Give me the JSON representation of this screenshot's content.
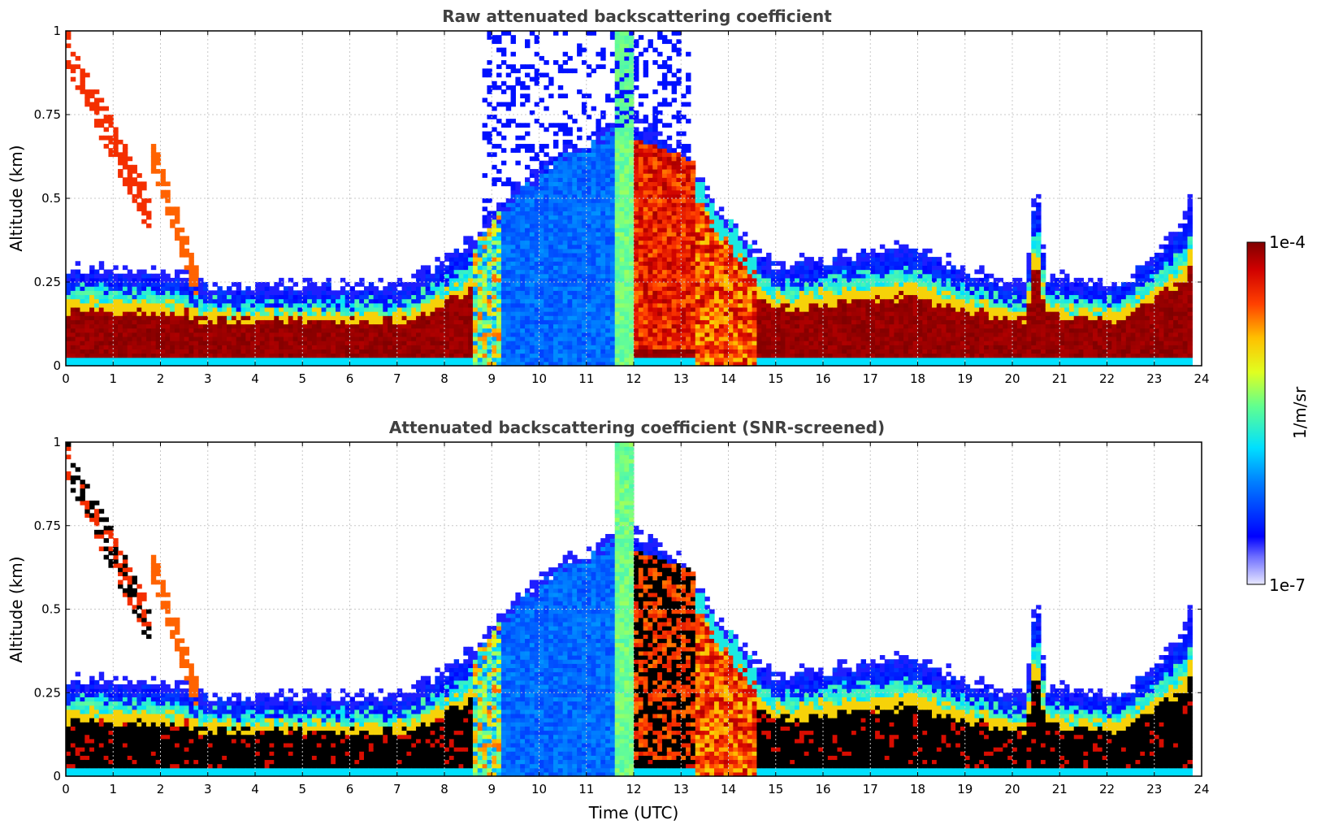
{
  "chart_data": [
    {
      "type": "heatmap",
      "title": "Raw attenuated backscattering coefficient",
      "xlabel": "",
      "ylabel": "Altitude (km)",
      "xlim": [
        0,
        24
      ],
      "ylim": [
        0,
        1
      ],
      "xticks": [
        0,
        1,
        2,
        3,
        4,
        5,
        6,
        7,
        8,
        9,
        10,
        11,
        12,
        13,
        14,
        15,
        16,
        17,
        18,
        19,
        20,
        21,
        22,
        23,
        24
      ],
      "ytick_labels": [
        "0",
        "0.25",
        "0.5",
        "0.75",
        "1"
      ],
      "ytick_values": [
        0,
        0.25,
        0.5,
        0.75,
        1
      ],
      "grid": true,
      "screened": false
    },
    {
      "type": "heatmap",
      "title": "Attenuated backscattering coefficient (SNR-screened)",
      "xlabel": "Time (UTC)",
      "ylabel": "Altitude (km)",
      "xlim": [
        0,
        24
      ],
      "ylim": [
        0,
        1
      ],
      "xticks": [
        0,
        1,
        2,
        3,
        4,
        5,
        6,
        7,
        8,
        9,
        10,
        11,
        12,
        13,
        14,
        15,
        16,
        17,
        18,
        19,
        20,
        21,
        22,
        23,
        24
      ],
      "ytick_labels": [
        "0",
        "0.25",
        "0.5",
        "0.75",
        "1"
      ],
      "ytick_values": [
        0,
        0.25,
        0.5,
        0.75,
        1
      ],
      "grid": true,
      "screened": true
    }
  ],
  "colorbar": {
    "label": "1/m/sr",
    "max_label": "1e-4",
    "min_label": "1e-7",
    "colormap": "jet"
  }
}
